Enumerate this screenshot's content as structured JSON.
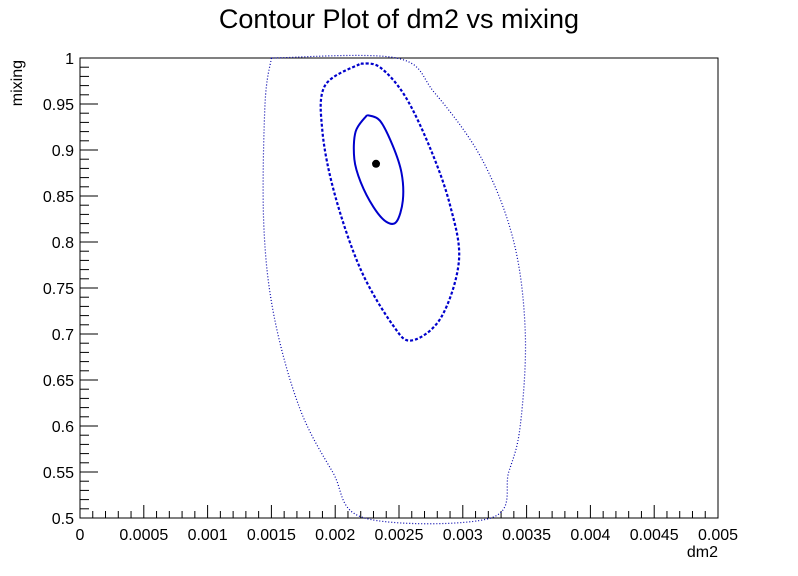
{
  "chart_data": {
    "type": "contour",
    "title": "Contour Plot of dm2 vs mixing",
    "xlabel": "dm2",
    "ylabel": "mixing",
    "xlim": [
      0,
      0.005
    ],
    "ylim": [
      0.5,
      1.0
    ],
    "x_ticks": [
      "0",
      "0.0005",
      "0.001",
      "0.0015",
      "0.002",
      "0.0025",
      "0.003",
      "0.0035",
      "0.004",
      "0.0045",
      "0.005"
    ],
    "y_ticks": [
      "0.5",
      "0.55",
      "0.6",
      "0.65",
      "0.7",
      "0.75",
      "0.8",
      "0.85",
      "0.9",
      "0.95",
      "1"
    ],
    "best_fit": {
      "x": 0.00232,
      "y": 0.885,
      "color": "#000000"
    },
    "contours": [
      {
        "style": "solid",
        "color": "#0000cc",
        "points": [
          [
            0.00225,
            0.938
          ],
          [
            0.00235,
            0.932
          ],
          [
            0.00245,
            0.905
          ],
          [
            0.00252,
            0.875
          ],
          [
            0.00253,
            0.845
          ],
          [
            0.00248,
            0.822
          ],
          [
            0.0024,
            0.822
          ],
          [
            0.0023,
            0.838
          ],
          [
            0.0022,
            0.865
          ],
          [
            0.00215,
            0.89
          ],
          [
            0.00216,
            0.92
          ],
          [
            0.00225,
            0.938
          ]
        ]
      },
      {
        "style": "dashed",
        "color": "#0000cc",
        "points": [
          [
            0.0022,
            0.994
          ],
          [
            0.00235,
            0.99
          ],
          [
            0.00255,
            0.958
          ],
          [
            0.00275,
            0.9
          ],
          [
            0.0029,
            0.84
          ],
          [
            0.00297,
            0.78
          ],
          [
            0.00283,
            0.718
          ],
          [
            0.0026,
            0.693
          ],
          [
            0.00245,
            0.71
          ],
          [
            0.0022,
            0.77
          ],
          [
            0.002,
            0.85
          ],
          [
            0.0019,
            0.92
          ],
          [
            0.00192,
            0.97
          ],
          [
            0.0022,
            0.994
          ]
        ]
      },
      {
        "style": "dotted",
        "color": "#0000aa",
        "points": [
          [
            0.0015,
            1.0
          ],
          [
            0.00248,
            1.0
          ],
          [
            0.00278,
            0.962
          ],
          [
            0.00315,
            0.89
          ],
          [
            0.0034,
            0.8
          ],
          [
            0.00349,
            0.7
          ],
          [
            0.00345,
            0.6
          ],
          [
            0.00336,
            0.55
          ],
          [
            0.00322,
            0.5
          ],
          [
            0.00223,
            0.5
          ],
          [
            0.00198,
            0.55
          ],
          [
            0.00172,
            0.62
          ],
          [
            0.00152,
            0.72
          ],
          [
            0.00144,
            0.82
          ],
          [
            0.00145,
            0.95
          ],
          [
            0.0015,
            1.0
          ]
        ]
      }
    ]
  }
}
